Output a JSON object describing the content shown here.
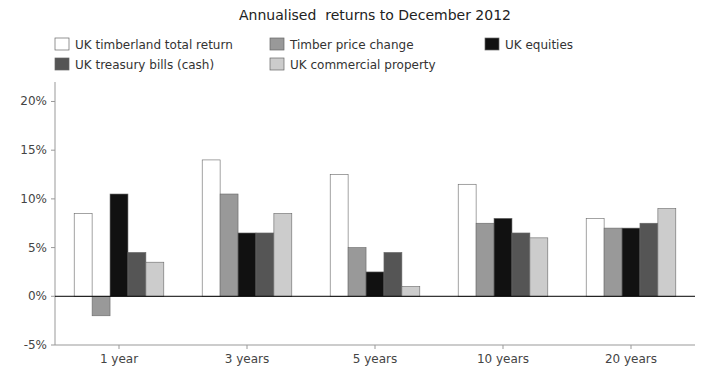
{
  "chart_data": {
    "type": "bar",
    "title": "Annualised  returns to December 2012",
    "categories": [
      "1 year",
      "3 years",
      "5 years",
      "10 years",
      "20 years"
    ],
    "series": [
      {
        "name": "UK timberland total return",
        "color": "#ffffff",
        "values": [
          8.5,
          14.0,
          12.5,
          11.5,
          8.0
        ]
      },
      {
        "name": "Timber price change",
        "color": "#999999",
        "values": [
          -2.0,
          10.5,
          5.0,
          7.5,
          7.0
        ]
      },
      {
        "name": "UK equities",
        "color": "#111111",
        "values": [
          10.5,
          6.5,
          2.5,
          8.0,
          7.0
        ]
      },
      {
        "name": "UK treasury bills (cash)",
        "color": "#555555",
        "values": [
          4.5,
          6.5,
          4.5,
          6.5,
          7.5
        ]
      },
      {
        "name": "UK commercial property",
        "color": "#cccccc",
        "values": [
          3.5,
          8.5,
          1.0,
          6.0,
          9.0
        ]
      }
    ],
    "ylim": [
      -5,
      22
    ],
    "yticks": [
      {
        "value": -5,
        "label": "-5%"
      },
      {
        "value": 0,
        "label": "0%"
      },
      {
        "value": 5,
        "label": "5%"
      },
      {
        "value": 10,
        "label": "10%"
      },
      {
        "value": 15,
        "label": "15%"
      },
      {
        "value": 20,
        "label": "20%"
      }
    ],
    "grid": false,
    "legend": "upper left"
  }
}
